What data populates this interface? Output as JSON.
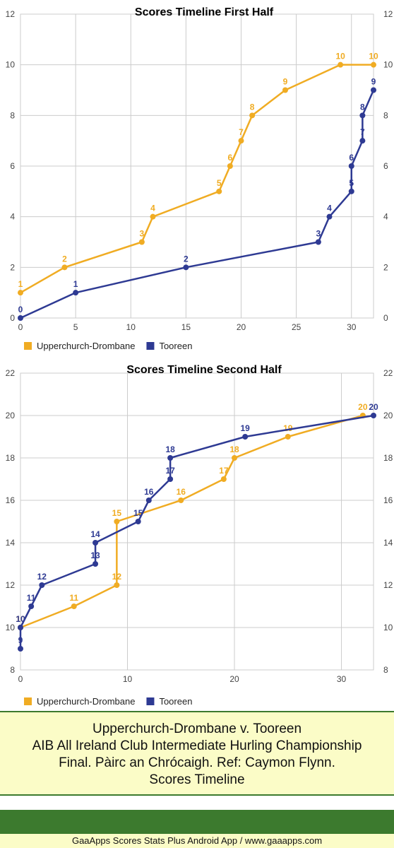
{
  "colors": {
    "team1": "#f0ac23",
    "team2": "#2e3a93",
    "grid": "#cccccc"
  },
  "chart_data": [
    {
      "type": "line",
      "title": "Scores Timeline First Half",
      "xlim": [
        0,
        32
      ],
      "ylim": [
        0,
        12
      ],
      "x_ticks": [
        0,
        5,
        10,
        15,
        20,
        25,
        30
      ],
      "y_ticks": [
        0,
        2,
        4,
        6,
        8,
        10,
        12
      ],
      "grid": true,
      "legend": "bottom-left",
      "series": [
        {
          "name": "Upperchurch-Drombane",
          "color": "#f0ac23",
          "points": [
            [
              0,
              1
            ],
            [
              4,
              2
            ],
            [
              11,
              3
            ],
            [
              12,
              4
            ],
            [
              18,
              5
            ],
            [
              19,
              6
            ],
            [
              20,
              7
            ],
            [
              21,
              8
            ],
            [
              24,
              9
            ],
            [
              29,
              10
            ],
            [
              32,
              10
            ]
          ]
        },
        {
          "name": "Tooreen",
          "color": "#2e3a93",
          "points": [
            [
              0,
              0
            ],
            [
              5,
              1
            ],
            [
              15,
              2
            ],
            [
              27,
              3
            ],
            [
              28,
              4
            ],
            [
              30,
              5
            ],
            [
              30,
              6
            ],
            [
              31,
              7
            ],
            [
              31,
              8
            ],
            [
              32,
              9
            ]
          ]
        }
      ]
    },
    {
      "type": "line",
      "title": "Scores Timeline Second Half",
      "xlim": [
        0,
        33
      ],
      "ylim": [
        8,
        22
      ],
      "x_ticks": [
        0,
        10,
        20,
        30
      ],
      "y_ticks": [
        8,
        10,
        12,
        14,
        16,
        18,
        20,
        22
      ],
      "grid": true,
      "legend": "bottom-left",
      "series": [
        {
          "name": "Upperchurch-Drombane",
          "color": "#f0ac23",
          "points": [
            [
              0,
              10
            ],
            [
              5,
              11
            ],
            [
              9,
              12
            ],
            [
              9,
              15
            ],
            [
              15,
              16
            ],
            [
              19,
              17
            ],
            [
              20,
              18
            ],
            [
              25,
              19
            ],
            [
              32,
              20
            ]
          ]
        },
        {
          "name": "Tooreen",
          "color": "#2e3a93",
          "points": [
            [
              0,
              9
            ],
            [
              0,
              10
            ],
            [
              1,
              11
            ],
            [
              2,
              12
            ],
            [
              7,
              13
            ],
            [
              7,
              14
            ],
            [
              11,
              15
            ],
            [
              12,
              16
            ],
            [
              14,
              17
            ],
            [
              14,
              18
            ],
            [
              21,
              19
            ],
            [
              33,
              20
            ]
          ]
        }
      ]
    }
  ],
  "caption": {
    "line1": "Upperchurch-Drombane v. Tooreen",
    "line2": "AIB All Ireland Club Intermediate Hurling Championship",
    "line3": "Final. Pàirc an Chrócaigh. Ref: Caymon Flynn.",
    "line4": "Scores Timeline"
  },
  "footer": "GaaApps Scores Stats Plus Android App / www.gaaapps.com"
}
